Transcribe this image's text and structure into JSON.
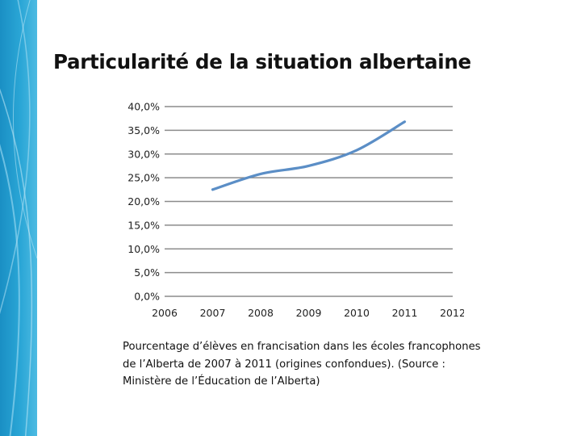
{
  "slide": {
    "title": "Particularité de la situation albertaine",
    "caption_lines": [
      "Pourcentage d’élèves en francisation dans les écoles francophones",
      "de l’Alberta de 2007 à 2011 (origines confondues).  (Source :",
      "Ministère de l’Éducation de l’Alberta)"
    ]
  },
  "colors": {
    "line": "#5b8ec6",
    "grid": "#8c8c8c",
    "band": "#2aa6d6"
  },
  "chart_data": {
    "type": "line",
    "title": "",
    "xlabel": "",
    "ylabel": "",
    "x_ticks": [
      "2006",
      "2007",
      "2008",
      "2009",
      "2010",
      "2011",
      "2012"
    ],
    "y_ticks": [
      "0,0%",
      "5,0%",
      "10,0%",
      "15,0%",
      "20,0%",
      "25,0%",
      "30,0%",
      "35,0%",
      "40,0%"
    ],
    "xlim": [
      2006,
      2012
    ],
    "ylim": [
      0,
      40
    ],
    "grid": true,
    "legend": "none",
    "series": [
      {
        "x": [
          2007,
          2008,
          2009,
          2010,
          2011
        ],
        "y": [
          22.5,
          25.8,
          27.5,
          30.8,
          36.8
        ]
      }
    ]
  }
}
